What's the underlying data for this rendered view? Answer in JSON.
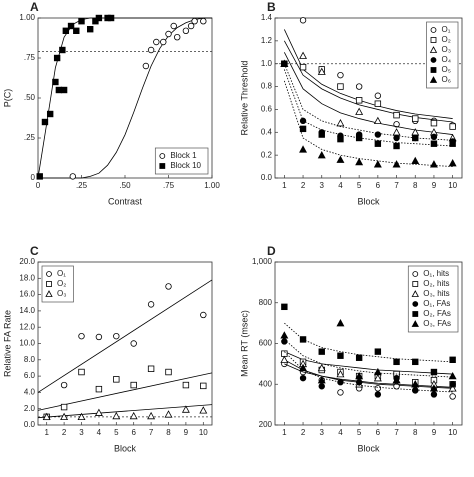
{
  "chart_data": [
    {
      "panel": "A",
      "type": "scatter",
      "xlabel": "Contrast",
      "ylabel": "P(C)",
      "xlim": [
        0,
        1
      ],
      "ylim": [
        0,
        1
      ],
      "xticks": [
        0,
        {
          "value": 0.25,
          "label": ".25"
        },
        {
          "value": 0.5,
          "label": ".50"
        },
        {
          "value": 0.75,
          "label": ".75"
        },
        {
          "value": 1,
          "label": "1.00"
        }
      ],
      "yticks": [
        0,
        {
          "value": 0.25,
          "label": ".25"
        },
        {
          "value": 0.5,
          "label": ".50"
        },
        {
          "value": 0.75,
          "label": ".75"
        },
        {
          "value": 1,
          "label": "1.00"
        }
      ],
      "ref": 0.79,
      "legend": "lower right",
      "fit_x": [
        0,
        0.05,
        0.1,
        0.15,
        0.2,
        0.25,
        0.3,
        0.35,
        0.4,
        0.45,
        0.5,
        0.55,
        0.6,
        0.65,
        0.7,
        0.75,
        0.8,
        0.85,
        0.9,
        0.95,
        1
      ],
      "series": [
        {
          "name": "Block 1",
          "marker": "circle",
          "filled": false,
          "color": "#000",
          "dashed": false,
          "x": [
            0.2,
            0.62,
            0.65,
            0.68,
            0.72,
            0.75,
            0.78,
            0.8,
            0.85,
            0.88,
            0.9,
            0.95
          ],
          "values": [
            0.01,
            0.7,
            0.8,
            0.85,
            0.85,
            0.9,
            0.95,
            0.88,
            0.92,
            0.95,
            0.98,
            0.98
          ],
          "fit": [
            0,
            0,
            0,
            0,
            0,
            0,
            0.01,
            0.03,
            0.08,
            0.16,
            0.27,
            0.41,
            0.56,
            0.7,
            0.81,
            0.89,
            0.94,
            0.97,
            0.99,
            1,
            1
          ]
        },
        {
          "name": "Block 10",
          "marker": "square",
          "filled": true,
          "color": "#000",
          "dashed": false,
          "x": [
            0.01,
            0.04,
            0.07,
            0.1,
            0.12,
            0.15,
            0.11,
            0.14,
            0.16,
            0.19,
            0.22,
            0.25,
            0.3,
            0.33,
            0.35,
            0.4,
            0.42
          ],
          "values": [
            0.01,
            0.35,
            0.4,
            0.6,
            0.55,
            0.55,
            0.75,
            0.8,
            0.92,
            0.95,
            0.92,
            0.98,
            0.93,
            0.98,
            1,
            1,
            1
          ],
          "fit": [
            0,
            0.34,
            0.69,
            0.88,
            0.96,
            0.99,
            1,
            1,
            1,
            1,
            1,
            1,
            1,
            1,
            1,
            1,
            1,
            1,
            1,
            1,
            1
          ]
        }
      ]
    },
    {
      "panel": "B",
      "type": "scatter",
      "xlabel": "Block",
      "ylabel": "Relative Threshold",
      "xlim": [
        0.5,
        10.5
      ],
      "ylim": [
        0,
        1.4
      ],
      "xticks": [
        1,
        2,
        3,
        4,
        5,
        6,
        7,
        8,
        9,
        10
      ],
      "yticks": [
        {
          "value": 0,
          "label": "0.0"
        },
        {
          "value": 0.2,
          "label": "0.2"
        },
        {
          "value": 0.4,
          "label": "0.4"
        },
        {
          "value": 0.6,
          "label": "0.6"
        },
        {
          "value": 0.8,
          "label": "0.8"
        },
        {
          "value": 1,
          "label": "1.0"
        },
        {
          "value": 1.2,
          "label": "1.2"
        },
        {
          "value": 1.4,
          "label": "1.4"
        }
      ],
      "ref": 1,
      "legend": "upper right",
      "x": [
        1,
        2,
        3,
        4,
        5,
        6,
        7,
        8,
        9,
        10
      ],
      "fit_x": [
        1,
        2,
        3,
        4,
        5,
        6,
        7,
        8,
        9,
        10
      ],
      "series": [
        {
          "name": "O₁",
          "marker": "circle",
          "filled": false,
          "color": "#000",
          "dashed": false,
          "values": [
            1,
            1.38,
            0.95,
            0.9,
            0.8,
            0.72,
            0.47,
            0.5,
            0.5,
            0.46
          ],
          "fit": [
            1.3,
            0.95,
            0.82,
            0.74,
            0.68,
            0.63,
            0.59,
            0.56,
            0.54,
            0.52
          ]
        },
        {
          "name": "O₂",
          "marker": "square",
          "filled": false,
          "color": "#000",
          "dashed": false,
          "values": [
            1,
            0.97,
            0.95,
            0.8,
            0.68,
            0.65,
            0.55,
            0.52,
            0.48,
            0.45
          ],
          "fit": [
            1.2,
            0.9,
            0.78,
            0.7,
            0.64,
            0.6,
            0.56,
            0.53,
            0.51,
            0.49
          ]
        },
        {
          "name": "O₃",
          "marker": "triangle",
          "filled": false,
          "color": "#000",
          "dashed": false,
          "values": [
            1,
            1.07,
            0.93,
            0.48,
            0.58,
            0.5,
            0.4,
            0.4,
            0.4,
            0.35
          ],
          "fit": [
            1.1,
            0.78,
            0.65,
            0.57,
            0.52,
            0.48,
            0.45,
            0.42,
            0.4,
            0.38
          ]
        },
        {
          "name": "O₄",
          "marker": "circle",
          "filled": true,
          "color": "#000",
          "dashed": true,
          "values": [
            1,
            0.5,
            0.4,
            0.37,
            0.38,
            0.38,
            0.35,
            0.35,
            0.36,
            0.32
          ],
          "fit": [
            1,
            0.6,
            0.5,
            0.45,
            0.42,
            0.39,
            0.37,
            0.35,
            0.34,
            0.33
          ]
        },
        {
          "name": "O₅",
          "marker": "square",
          "filled": true,
          "color": "#000",
          "dashed": true,
          "values": [
            1,
            0.43,
            0.38,
            0.34,
            0.35,
            0.3,
            0.28,
            0.35,
            0.3,
            0.3
          ],
          "fit": [
            0.95,
            0.5,
            0.42,
            0.38,
            0.35,
            0.33,
            0.31,
            0.3,
            0.29,
            0.28
          ]
        },
        {
          "name": "O₆",
          "marker": "triangle",
          "filled": true,
          "color": "#000",
          "dashed": true,
          "values": [
            1,
            0.25,
            0.2,
            0.16,
            0.14,
            0.12,
            0.12,
            0.15,
            0.12,
            0.13
          ],
          "fit": [
            0.85,
            0.35,
            0.25,
            0.2,
            0.17,
            0.15,
            0.13,
            0.12,
            0.11,
            0.1
          ]
        }
      ]
    },
    {
      "panel": "C",
      "type": "scatter",
      "xlabel": "Block",
      "ylabel": "Relative FA Rate",
      "xlim": [
        0.5,
        10.5
      ],
      "ylim": [
        0,
        20
      ],
      "xticks": [
        1,
        2,
        3,
        4,
        5,
        6,
        7,
        8,
        9,
        10
      ],
      "yticks": [
        {
          "value": 0,
          "label": "0.0"
        },
        {
          "value": 2,
          "label": "2.0"
        },
        {
          "value": 4,
          "label": "4.0"
        },
        {
          "value": 6,
          "label": "6.0"
        },
        {
          "value": 8,
          "label": "8.0"
        },
        {
          "value": 10,
          "label": "10.0"
        },
        {
          "value": 12,
          "label": "12.0"
        },
        {
          "value": 14,
          "label": "14.0"
        },
        {
          "value": 16,
          "label": "16.0"
        },
        {
          "value": 18,
          "label": "18.0"
        },
        {
          "value": 20,
          "label": "20.0"
        }
      ],
      "ref": 1,
      "legend": "upper left",
      "x": [
        1,
        2,
        3,
        4,
        5,
        6,
        7,
        8,
        9,
        10
      ],
      "fit_x": [
        0.5,
        10.5
      ],
      "series": [
        {
          "name": "O₁",
          "marker": "circle",
          "filled": false,
          "color": "#000",
          "dashed": false,
          "values": [
            1,
            4.9,
            10.9,
            10.8,
            10.9,
            10,
            14.8,
            17,
            null,
            13.5
          ],
          "fit": [
            4,
            17.8
          ]
        },
        {
          "name": "O₂",
          "marker": "square",
          "filled": false,
          "color": "#000",
          "dashed": false,
          "values": [
            1,
            2.2,
            6.5,
            4.4,
            5.6,
            4.9,
            6.9,
            6.5,
            4.9,
            4.8
          ],
          "fit": [
            1.8,
            6.4
          ]
        },
        {
          "name": "O₃",
          "marker": "triangle",
          "filled": false,
          "color": "#000",
          "dashed": false,
          "values": [
            1,
            1,
            1,
            1.5,
            1.1,
            1.1,
            1.1,
            1.3,
            1.9,
            1.8
          ],
          "fit": [
            0.9,
            2.5
          ]
        }
      ]
    },
    {
      "panel": "D",
      "type": "scatter",
      "xlabel": "Block",
      "ylabel": "Mean RT (msec)",
      "xlim": [
        0.5,
        10.5
      ],
      "ylim": [
        200,
        1000
      ],
      "xticks": [
        1,
        2,
        3,
        4,
        5,
        6,
        7,
        8,
        9,
        10
      ],
      "yticks": [
        200,
        400,
        600,
        800,
        {
          "value": 1000,
          "label": "1,000"
        }
      ],
      "legend": "upper right",
      "x": [
        1,
        2,
        3,
        4,
        5,
        6,
        7,
        8,
        9,
        10
      ],
      "fit_x": [
        1,
        2,
        3,
        4,
        5,
        6,
        7,
        8,
        9,
        10
      ],
      "series": [
        {
          "name": "O₁, hits",
          "marker": "circle",
          "filled": false,
          "color": "#000",
          "dashed": false,
          "values": [
            500,
            460,
            420,
            360,
            380,
            380,
            390,
            370,
            380,
            340
          ],
          "fit": [
            520,
            470,
            440,
            420,
            410,
            400,
            395,
            390,
            385,
            380
          ]
        },
        {
          "name": "O₂, hits",
          "marker": "square",
          "filled": false,
          "color": "#000",
          "dashed": false,
          "values": [
            550,
            510,
            470,
            460,
            440,
            440,
            450,
            410,
            420,
            400
          ],
          "fit": [
            560,
            520,
            500,
            490,
            480,
            470,
            465,
            460,
            455,
            450
          ]
        },
        {
          "name": "O₃, hits",
          "marker": "triangle",
          "filled": false,
          "color": "#000",
          "dashed": false,
          "values": [
            520,
            500,
            480,
            450,
            400,
            430,
            420,
            400,
            400,
            380
          ],
          "fit": [
            500,
            460,
            440,
            425,
            415,
            405,
            400,
            395,
            390,
            385
          ]
        },
        {
          "name": "O₁, FAs",
          "marker": "circle",
          "filled": true,
          "color": "#000",
          "dashed": true,
          "values": [
            610,
            430,
            390,
            410,
            410,
            350,
            430,
            370,
            350,
            400
          ],
          "fit": [
            560,
            470,
            430,
            410,
            395,
            385,
            378,
            372,
            367,
            362
          ]
        },
        {
          "name": "O₂, FAs",
          "marker": "square",
          "filled": true,
          "color": "#000",
          "dashed": true,
          "values": [
            780,
            620,
            560,
            540,
            530,
            560,
            510,
            510,
            460,
            520
          ],
          "fit": [
            700,
            620,
            580,
            560,
            545,
            535,
            525,
            520,
            515,
            510
          ]
        },
        {
          "name": "O₃, FAs",
          "marker": "triangle",
          "filled": true,
          "color": "#000",
          "dashed": true,
          "values": [
            640,
            480,
            420,
            700,
            440,
            460,
            420,
            400,
            380,
            440
          ],
          "fit": [
            620,
            540,
            500,
            480,
            465,
            455,
            450,
            445,
            440,
            435
          ]
        }
      ]
    }
  ]
}
